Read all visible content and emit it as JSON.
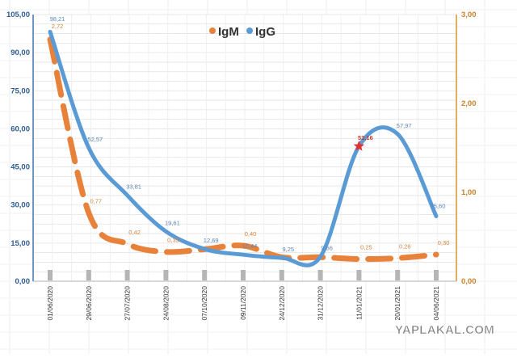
{
  "chart_data": {
    "type": "line",
    "title": "",
    "legend_placement": "top-center",
    "grid": true,
    "categories": [
      "01/06/2020",
      "29/06/2020",
      "27/07/2020",
      "24/08/2020",
      "07/10/2020",
      "09/11/2020",
      "24/12/2020",
      "31/12/2020",
      "11/01/2021",
      "20/01/2021",
      "04/06/2021"
    ],
    "y_left": {
      "range": [
        0,
        105
      ],
      "ticks": [
        0,
        15,
        30,
        45,
        60,
        75,
        90,
        105
      ],
      "tick_labels": [
        "0,00",
        "15,00",
        "30,00",
        "45,00",
        "60,00",
        "75,00",
        "90,00",
        "105,00"
      ]
    },
    "y_right": {
      "range": [
        0,
        3
      ],
      "ticks": [
        0,
        1,
        2,
        3
      ],
      "tick_labels": [
        "0,00",
        "1,00",
        "2,00",
        "3,00"
      ]
    },
    "series": [
      {
        "name": "IgM",
        "axis": "right",
        "style": "dashed",
        "color": "#E8823A",
        "values": [
          2.72,
          0.77,
          0.42,
          0.33,
          0.36,
          0.4,
          0.27,
          0.27,
          0.25,
          0.26,
          0.3
        ],
        "labels": [
          "2,72",
          "0,77",
          "0,42",
          "0,33",
          "",
          "0,40",
          "",
          "",
          "0,25",
          "0,26",
          "0,30"
        ]
      },
      {
        "name": "IgG",
        "axis": "left",
        "style": "solid",
        "color": "#5B9BD5",
        "values": [
          98.21,
          52.57,
          33.81,
          19.61,
          12.69,
          10.44,
          9.25,
          9.66,
          53.16,
          57.97,
          25.6
        ],
        "labels": [
          "98,21",
          "52,57",
          "33,81",
          "19,61",
          "12,69",
          "10,44",
          "9,25",
          "9,66",
          "53,16",
          "57,97",
          "25,60"
        ]
      }
    ],
    "highlight": {
      "series": "IgG",
      "index": 8,
      "marker": "star",
      "color": "#E03030"
    }
  },
  "watermark": "YAPLAKAL.COM"
}
